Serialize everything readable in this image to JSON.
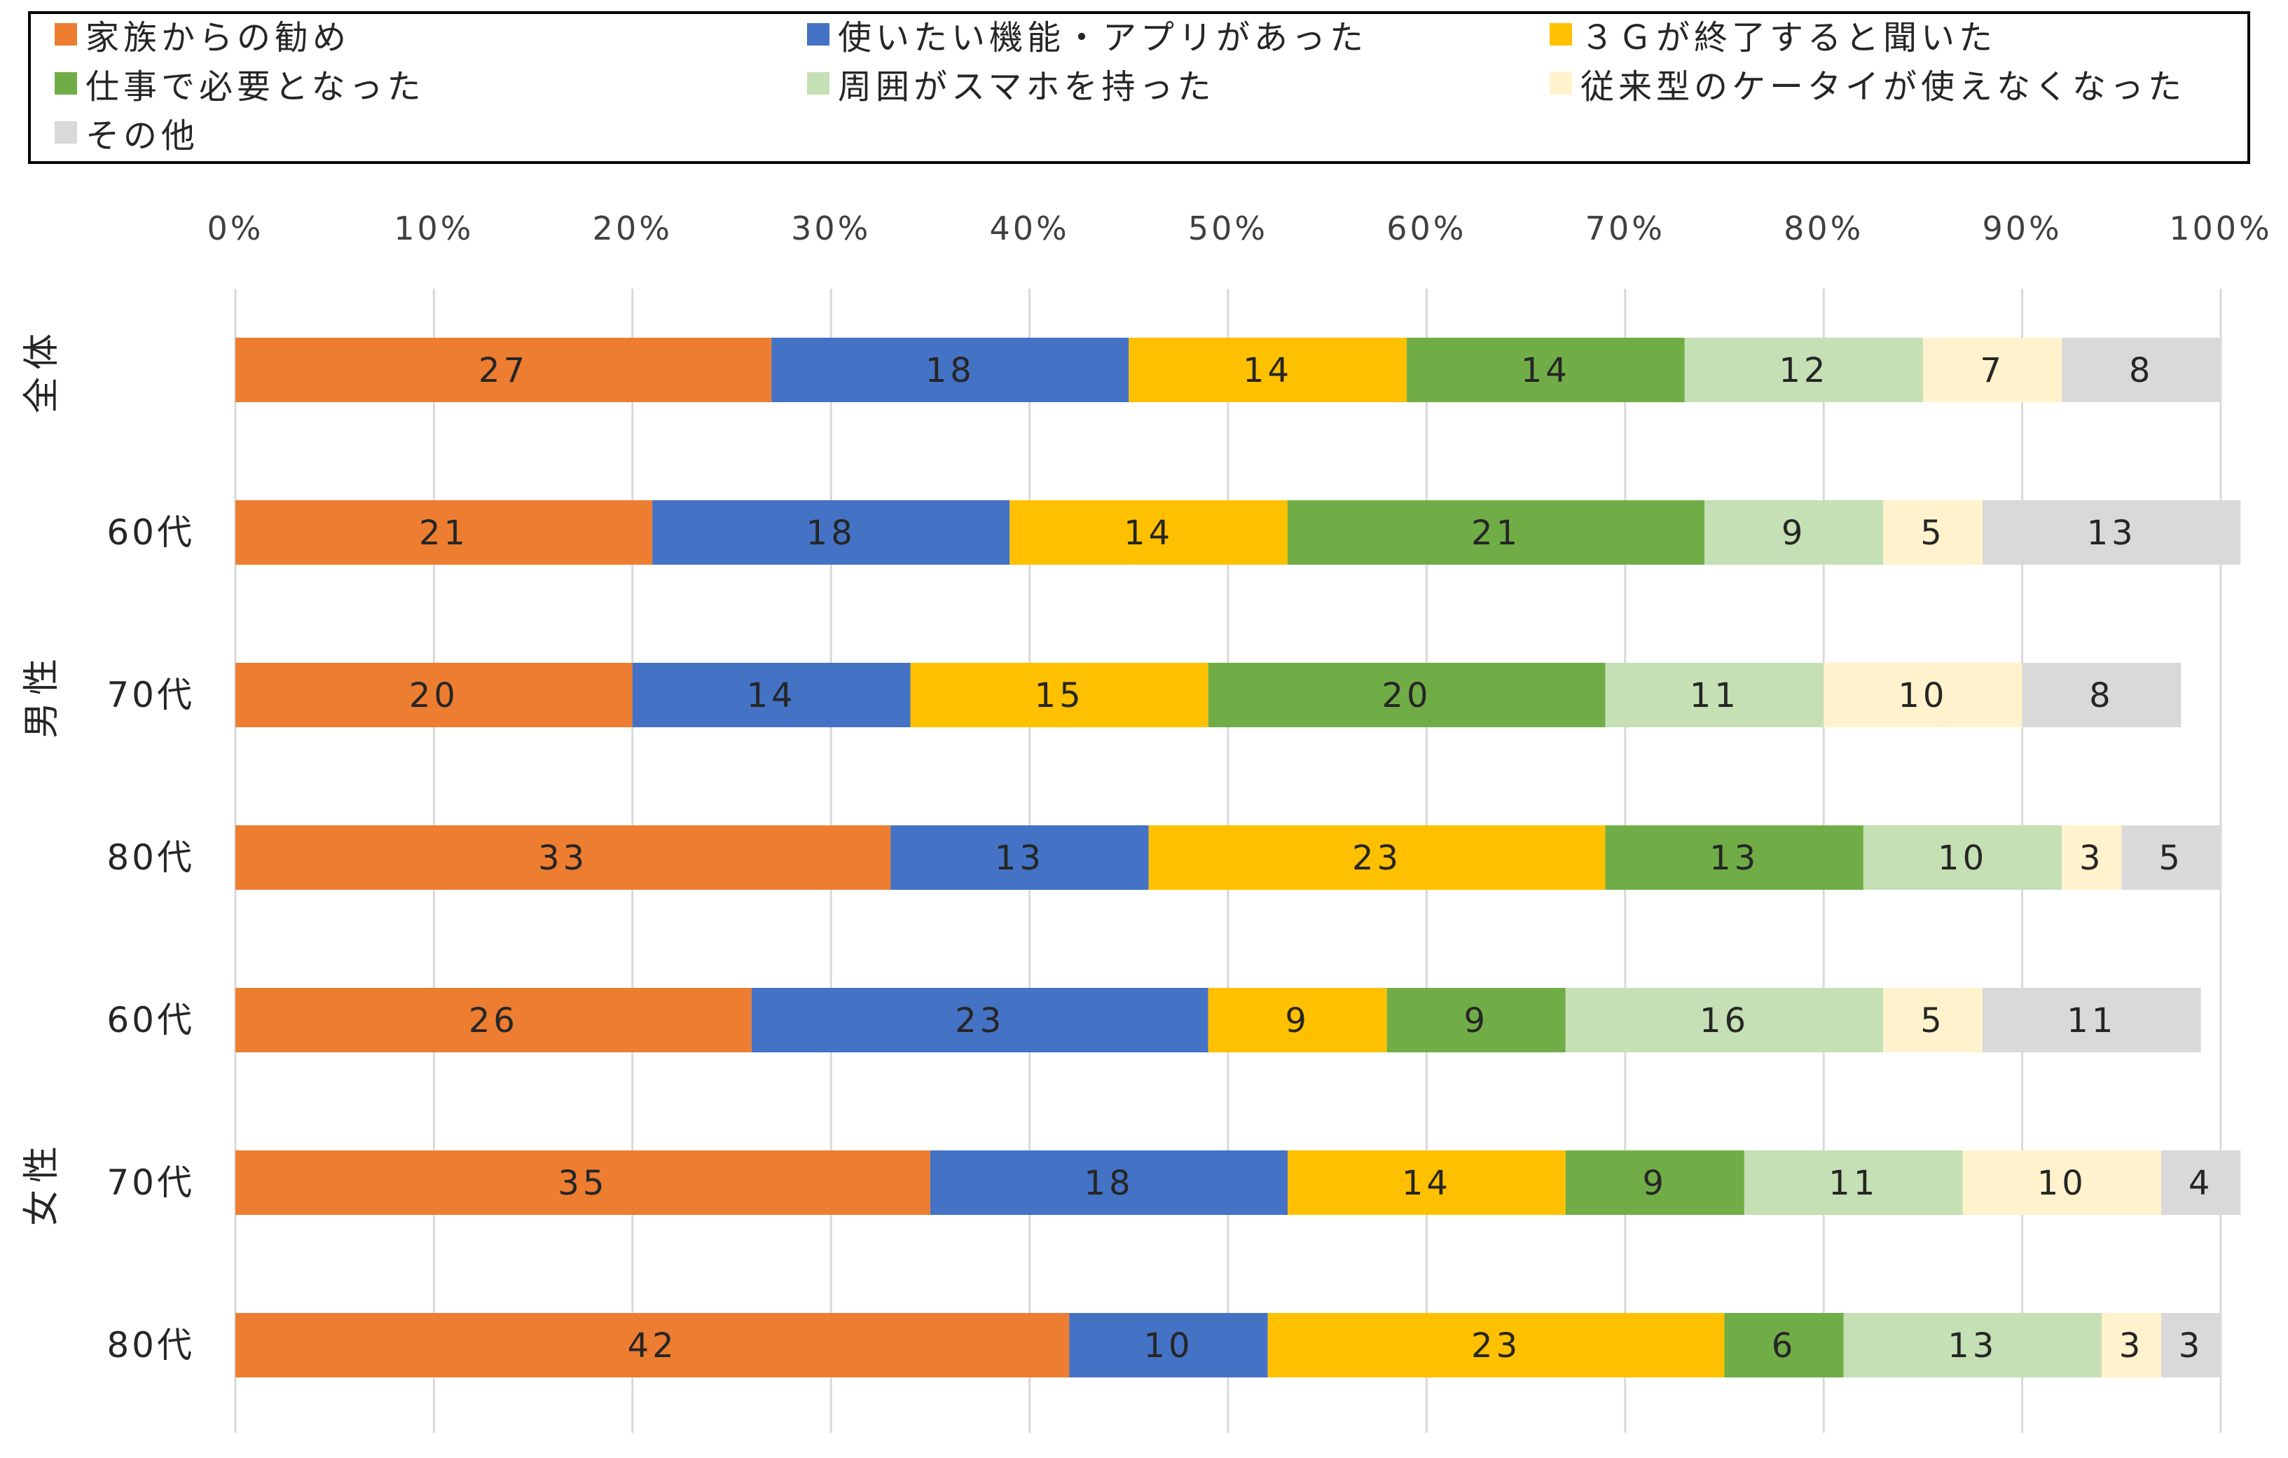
{
  "chart_data": {
    "type": "bar",
    "orientation": "horizontal",
    "stacked": true,
    "percent": true,
    "xlim": [
      0,
      100
    ],
    "x_ticks": [
      "0%",
      "10%",
      "20%",
      "30%",
      "40%",
      "50%",
      "60%",
      "70%",
      "80%",
      "90%",
      "100%"
    ],
    "grid": true,
    "legend_position": "top",
    "categories": [
      "全体",
      "60代",
      "70代",
      "80代",
      "60代",
      "70代",
      "80代"
    ],
    "groups": [
      {
        "label": "全体",
        "rows": [
          0
        ]
      },
      {
        "label": "男性",
        "rows": [
          1,
          2,
          3
        ]
      },
      {
        "label": "女性",
        "rows": [
          4,
          5,
          6
        ]
      }
    ],
    "series": [
      {
        "name": "家族からの勧め",
        "color": "#ED7D31",
        "values": [
          27,
          21,
          20,
          33,
          26,
          35,
          42
        ]
      },
      {
        "name": "使いたい機能・アプリがあった",
        "color": "#4472C4",
        "values": [
          18,
          18,
          14,
          13,
          23,
          18,
          10
        ]
      },
      {
        "name": "３Ｇが終了すると聞いた",
        "color": "#FFC000",
        "values": [
          14,
          14,
          15,
          23,
          9,
          14,
          23
        ]
      },
      {
        "name": "仕事で必要となった",
        "color": "#70AD47",
        "values": [
          14,
          21,
          20,
          13,
          9,
          9,
          6
        ]
      },
      {
        "name": "周囲がスマホを持った",
        "color": "#C5E0B4",
        "values": [
          12,
          9,
          11,
          10,
          16,
          11,
          13
        ]
      },
      {
        "name": "従来型のケータイが使えなくなった",
        "color": "#FFF2CC",
        "values": [
          7,
          5,
          10,
          3,
          5,
          10,
          3
        ]
      },
      {
        "name": "その他",
        "color": "#D9D9D9",
        "values": [
          8,
          13,
          8,
          5,
          11,
          4,
          3
        ]
      }
    ]
  }
}
